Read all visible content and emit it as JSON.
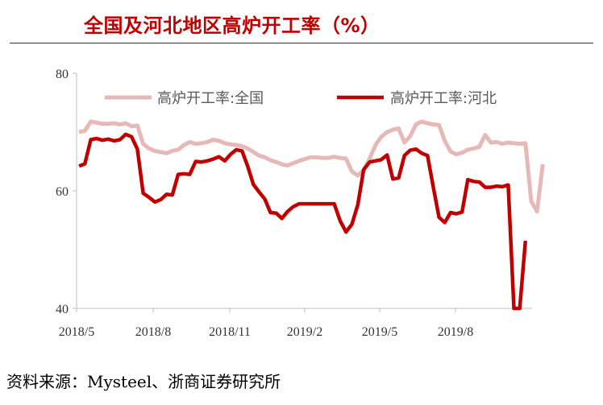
{
  "header": {
    "title": "全国及河北地区高炉开工率（%）"
  },
  "footer": {
    "source": "资料来源：Mysteel、浙商证券研究所"
  },
  "colors": {
    "series_national": "#e6b8b7",
    "series_hebei": "#c00000",
    "title": "#c00000"
  },
  "chart_data": {
    "type": "line",
    "title": "全国及河北地区高炉开工率（%）",
    "xlabel": "",
    "ylabel": "",
    "ylim": [
      40,
      80
    ],
    "yticks": [
      40,
      60,
      80
    ],
    "xticks": [
      "2018/5",
      "2018/8",
      "2018/11",
      "2019/2",
      "2019/5",
      "2019/8"
    ],
    "grid": false,
    "legend_position": "top",
    "x_start": "2018-05-04",
    "x_freq": "weekly",
    "series": [
      {
        "name": "高炉开工率:全国",
        "color": "#e6b8b7",
        "values": [
          70.0,
          70.2,
          71.8,
          71.6,
          71.4,
          71.4,
          71.5,
          71.3,
          71.5,
          71.0,
          71.1,
          68.0,
          67.2,
          66.8,
          66.6,
          66.4,
          66.8,
          67.0,
          67.8,
          68.3,
          68.0,
          68.1,
          68.3,
          68.7,
          68.5,
          68.1,
          67.9,
          67.8,
          67.6,
          67.2,
          66.6,
          66.0,
          65.7,
          65.2,
          64.9,
          64.5,
          64.3,
          64.7,
          65.1,
          65.4,
          65.7,
          65.7,
          65.6,
          65.6,
          65.8,
          65.6,
          65.5,
          63.3,
          62.6,
          63.5,
          65.5,
          67.8,
          69.2,
          70.0,
          70.4,
          70.6,
          68.2,
          69.3,
          71.3,
          71.8,
          71.5,
          71.3,
          71.2,
          68.5,
          66.7,
          66.2,
          66.5,
          67.0,
          67.2,
          67.5,
          69.5,
          68.2,
          68.3,
          68.0,
          68.2,
          68.1,
          68.0,
          68.1,
          58.2,
          56.5,
          64.5
        ]
      },
      {
        "name": "高炉开工率:河北",
        "color": "#c00000",
        "values": [
          64.2,
          64.6,
          68.7,
          68.9,
          68.6,
          68.8,
          68.5,
          68.7,
          69.6,
          69.2,
          67.1,
          59.6,
          58.9,
          58.1,
          58.5,
          59.4,
          59.3,
          62.8,
          62.9,
          62.8,
          65.0,
          64.9,
          65.1,
          65.4,
          65.8,
          65.1,
          66.2,
          67.0,
          66.8,
          64.2,
          61.1,
          59.8,
          58.6,
          56.3,
          56.2,
          55.3,
          56.5,
          57.3,
          57.8,
          57.8,
          57.8,
          57.8,
          57.8,
          57.8,
          57.8,
          54.9,
          53.0,
          54.3,
          57.6,
          63.6,
          64.9,
          65.1,
          65.3,
          66.1,
          62.0,
          62.2,
          66.0,
          66.9,
          67.1,
          66.4,
          66.0,
          60.7,
          55.5,
          54.6,
          56.3,
          56.1,
          56.4,
          61.9,
          61.6,
          61.5,
          60.6,
          60.6,
          60.8,
          60.7,
          61.0,
          40.0,
          40.0,
          51.5
        ]
      }
    ]
  }
}
